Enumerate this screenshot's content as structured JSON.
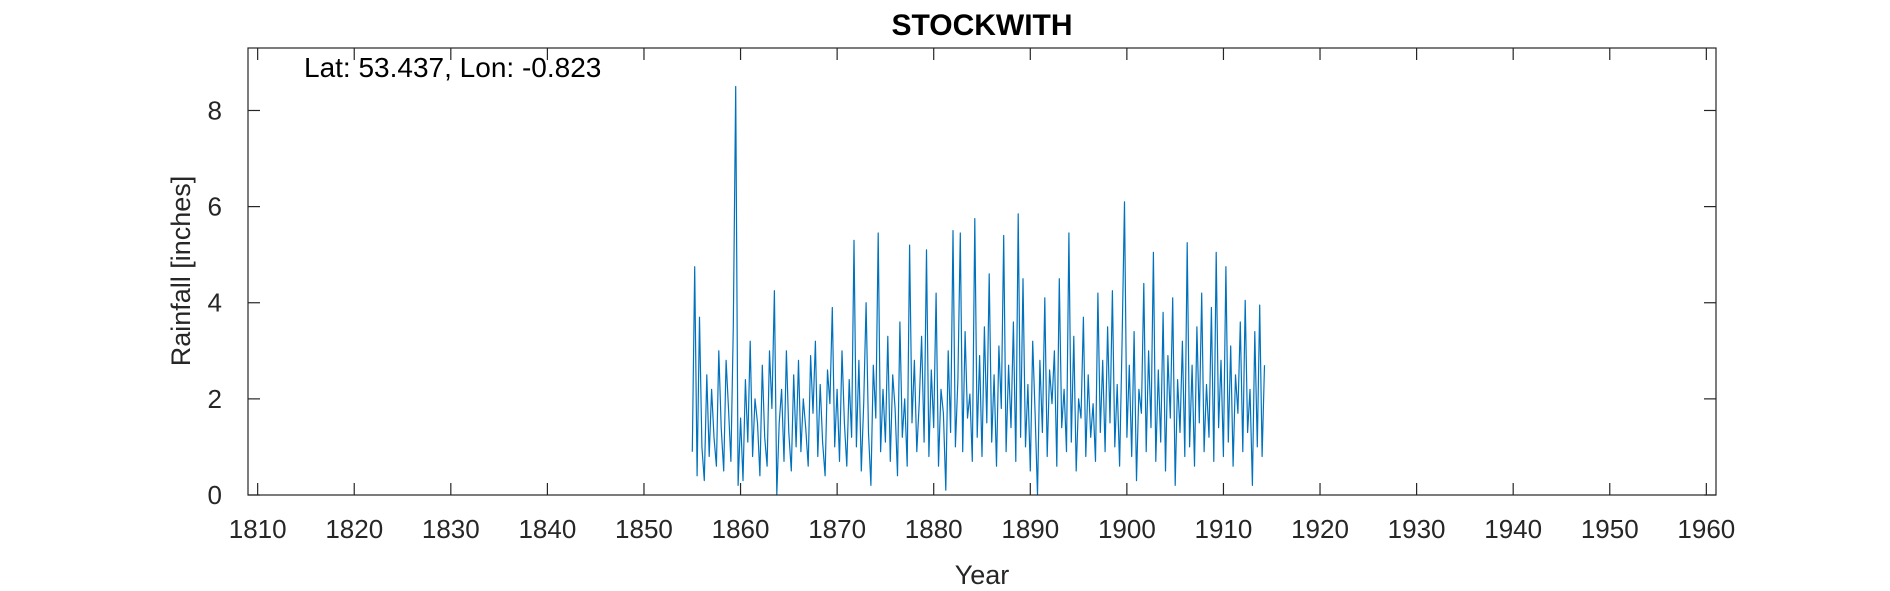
{
  "chart_data": {
    "type": "line",
    "title": "STOCKWITH",
    "xlabel": "Year",
    "ylabel": "Rainfall [inches]",
    "annotation": "Lat: 53.437, Lon: -0.823",
    "xlim": [
      1809,
      1961
    ],
    "ylim": [
      0,
      9.3
    ],
    "x_ticks": [
      1810,
      1820,
      1830,
      1840,
      1850,
      1860,
      1870,
      1880,
      1890,
      1900,
      1910,
      1920,
      1930,
      1940,
      1950,
      1960
    ],
    "y_ticks": [
      0,
      2,
      4,
      6,
      8
    ],
    "grid": false,
    "series_color": "#0072BD",
    "series": [
      {
        "x_start": 1855.0,
        "x_step": 0.25,
        "note_resolution": "approximate seasonal resolution of monthly record",
        "values": [
          0.9,
          4.75,
          0.4,
          3.7,
          1.0,
          0.3,
          2.5,
          0.8,
          2.2,
          1.2,
          0.6,
          3.0,
          1.4,
          0.5,
          2.8,
          1.8,
          0.7,
          3.5,
          8.5,
          0.2,
          1.6,
          0.3,
          2.4,
          1.1,
          3.2,
          0.8,
          2.0,
          1.5,
          0.4,
          2.7,
          1.2,
          0.6,
          3.0,
          1.8,
          4.25,
          0.0,
          1.5,
          2.2,
          0.7,
          3.0,
          1.3,
          0.5,
          2.5,
          1.0,
          2.8,
          0.9,
          2.0,
          1.4,
          0.6,
          2.9,
          1.7,
          3.2,
          0.8,
          2.3,
          1.1,
          0.4,
          2.6,
          1.9,
          3.9,
          1.0,
          2.2,
          0.7,
          3.0,
          1.5,
          0.6,
          2.4,
          1.2,
          5.3,
          1.0,
          2.8,
          0.5,
          1.9,
          4.0,
          1.3,
          0.2,
          2.7,
          1.6,
          5.45,
          0.9,
          2.2,
          1.1,
          3.3,
          0.7,
          2.5,
          1.8,
          0.4,
          3.6,
          1.2,
          2.0,
          0.6,
          5.2,
          1.5,
          2.8,
          0.9,
          1.9,
          3.3,
          1.1,
          5.1,
          0.8,
          2.6,
          1.4,
          4.2,
          0.6,
          2.2,
          1.7,
          0.1,
          3.0,
          1.3,
          5.5,
          1.0,
          2.4,
          5.45,
          0.9,
          3.4,
          1.6,
          2.1,
          0.7,
          5.75,
          1.2,
          2.9,
          0.8,
          3.5,
          1.5,
          4.6,
          1.1,
          2.5,
          0.6,
          3.1,
          1.8,
          5.4,
          0.9,
          2.7,
          1.4,
          3.6,
          0.7,
          5.85,
          1.2,
          4.5,
          1.0,
          2.3,
          0.5,
          3.2,
          1.7,
          0.0,
          2.8,
          1.3,
          4.1,
          0.8,
          2.6,
          1.9,
          3.0,
          0.6,
          4.5,
          1.4,
          2.2,
          0.9,
          5.45,
          1.1,
          3.3,
          0.5,
          2.0,
          1.6,
          3.7,
          0.8,
          2.5,
          1.2,
          1.9,
          0.7,
          4.2,
          1.3,
          2.8,
          0.9,
          3.5,
          1.5,
          4.25,
          1.0,
          2.3,
          0.6,
          3.1,
          6.1,
          1.2,
          2.7,
          0.8,
          3.4,
          0.3,
          2.2,
          1.7,
          4.4,
          0.9,
          3.0,
          1.4,
          5.05,
          0.7,
          2.6,
          1.1,
          3.8,
          0.5,
          2.9,
          1.6,
          4.1,
          0.2,
          2.4,
          1.3,
          3.2,
          0.8,
          5.25,
          1.0,
          2.7,
          0.6,
          3.5,
          1.5,
          4.2,
          0.9,
          2.3,
          1.2,
          3.9,
          0.7,
          5.05,
          1.4,
          2.8,
          0.8,
          4.75,
          1.1,
          3.1,
          0.6,
          2.5,
          1.7,
          3.6,
          0.9,
          4.05,
          1.3,
          2.2,
          0.2,
          3.4,
          1.0,
          3.95,
          0.8,
          2.7
        ]
      }
    ]
  }
}
